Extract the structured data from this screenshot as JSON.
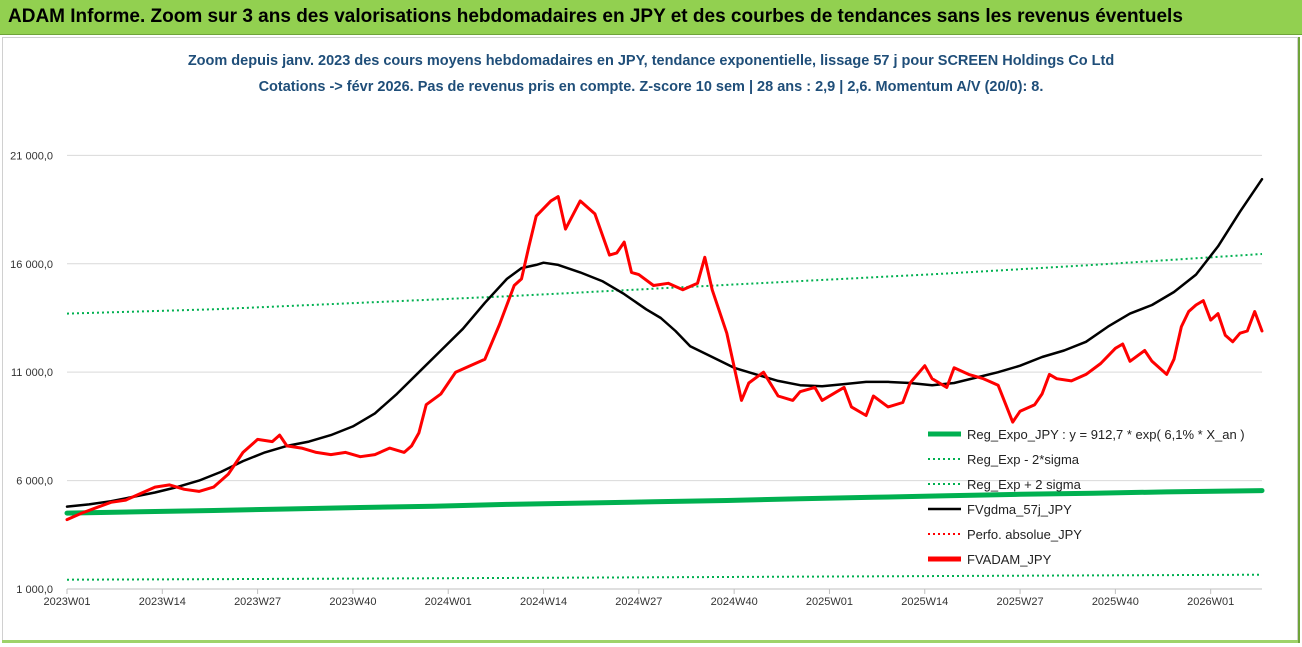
{
  "banner": {
    "title": "ADAM Informe. Zoom sur 3 ans des valorisations hebdomadaires en JPY et des courbes de tendances sans les revenus éventuels"
  },
  "chart_data": {
    "type": "line",
    "title_line1": "Zoom depuis janv. 2023 des cours moyens hebdomadaires en JPY, tendance exponentielle, lissage 57 j pour SCREEN Holdings Co Ltd",
    "title_line2": "Cotations -> févr 2026.  Pas de revenus pris en compte. Z-score 10 sem | 28 ans : 2,9 | 2,6. Momentum A/V (20/0): 8.",
    "ylim": [
      1000,
      23000
    ],
    "xlim": [
      0,
      163
    ],
    "y_ticks": [
      {
        "value": 1000,
        "label": "1 000,0"
      },
      {
        "value": 6000,
        "label": "6 000,0"
      },
      {
        "value": 11000,
        "label": "11 000,0"
      },
      {
        "value": 16000,
        "label": "16 000,0"
      },
      {
        "value": 21000,
        "label": "21 000,0"
      }
    ],
    "x_ticks": [
      {
        "index": 0,
        "label": "2023W01"
      },
      {
        "index": 13,
        "label": "2023W14"
      },
      {
        "index": 26,
        "label": "2023W27"
      },
      {
        "index": 39,
        "label": "2023W40"
      },
      {
        "index": 52,
        "label": "2024W01"
      },
      {
        "index": 65,
        "label": "2024W14"
      },
      {
        "index": 78,
        "label": "2024W27"
      },
      {
        "index": 91,
        "label": "2024W40"
      },
      {
        "index": 104,
        "label": "2025W01"
      },
      {
        "index": 117,
        "label": "2025W14"
      },
      {
        "index": 130,
        "label": "2025W27"
      },
      {
        "index": 143,
        "label": "2025W40"
      },
      {
        "index": 156,
        "label": "2026W01"
      }
    ],
    "series": [
      {
        "name": "Reg_Expo_JPY : y = 912,7 * exp( 6,1% *  X_an )",
        "color": "#00b050",
        "dash": "",
        "width": 5,
        "points": [
          [
            0,
            4500
          ],
          [
            10,
            4560
          ],
          [
            20,
            4620
          ],
          [
            30,
            4690
          ],
          [
            40,
            4760
          ],
          [
            50,
            4820
          ],
          [
            60,
            4900
          ],
          [
            70,
            4960
          ],
          [
            80,
            5020
          ],
          [
            90,
            5080
          ],
          [
            100,
            5160
          ],
          [
            110,
            5230
          ],
          [
            120,
            5300
          ],
          [
            130,
            5370
          ],
          [
            140,
            5420
          ],
          [
            150,
            5480
          ],
          [
            163,
            5540
          ]
        ]
      },
      {
        "name": "Reg_Exp - 2*sigma",
        "color": "#00b050",
        "dash": "2,3",
        "width": 2,
        "points": [
          [
            0,
            1430
          ],
          [
            40,
            1480
          ],
          [
            80,
            1540
          ],
          [
            120,
            1600
          ],
          [
            163,
            1660
          ]
        ]
      },
      {
        "name": "Reg_Exp + 2 sigma",
        "color": "#00b050",
        "dash": "2,3",
        "width": 2,
        "points": [
          [
            0,
            13700
          ],
          [
            20,
            13900
          ],
          [
            40,
            14200
          ],
          [
            60,
            14500
          ],
          [
            80,
            14850
          ],
          [
            100,
            15200
          ],
          [
            120,
            15550
          ],
          [
            140,
            15950
          ],
          [
            163,
            16450
          ]
        ]
      },
      {
        "name": "FVgdma_57j_JPY",
        "color": "#000000",
        "dash": "",
        "width": 2.5,
        "points": [
          [
            0,
            4800
          ],
          [
            3,
            4900
          ],
          [
            6,
            5050
          ],
          [
            9,
            5250
          ],
          [
            12,
            5450
          ],
          [
            15,
            5700
          ],
          [
            18,
            6000
          ],
          [
            21,
            6400
          ],
          [
            24,
            6900
          ],
          [
            27,
            7300
          ],
          [
            30,
            7600
          ],
          [
            33,
            7800
          ],
          [
            36,
            8100
          ],
          [
            39,
            8500
          ],
          [
            42,
            9100
          ],
          [
            45,
            10000
          ],
          [
            48,
            11000
          ],
          [
            51,
            12000
          ],
          [
            54,
            13000
          ],
          [
            57,
            14200
          ],
          [
            60,
            15300
          ],
          [
            62,
            15800
          ],
          [
            64,
            15950
          ],
          [
            65,
            16050
          ],
          [
            67,
            15950
          ],
          [
            70,
            15600
          ],
          [
            73,
            15200
          ],
          [
            76,
            14600
          ],
          [
            79,
            13900
          ],
          [
            81,
            13500
          ],
          [
            83,
            12900
          ],
          [
            85,
            12200
          ],
          [
            88,
            11700
          ],
          [
            91,
            11200
          ],
          [
            94,
            10900
          ],
          [
            97,
            10600
          ],
          [
            100,
            10400
          ],
          [
            103,
            10350
          ],
          [
            106,
            10450
          ],
          [
            109,
            10550
          ],
          [
            112,
            10550
          ],
          [
            115,
            10500
          ],
          [
            118,
            10400
          ],
          [
            121,
            10500
          ],
          [
            124,
            10750
          ],
          [
            127,
            11000
          ],
          [
            130,
            11300
          ],
          [
            133,
            11700
          ],
          [
            136,
            12000
          ],
          [
            139,
            12400
          ],
          [
            142,
            13100
          ],
          [
            145,
            13700
          ],
          [
            148,
            14100
          ],
          [
            151,
            14700
          ],
          [
            154,
            15500
          ],
          [
            157,
            16800
          ],
          [
            160,
            18400
          ],
          [
            163,
            19900
          ]
        ]
      },
      {
        "name": "Perfo. absolue_JPY",
        "color": "#ff0000",
        "dash": "2,3",
        "width": 1.5,
        "points": []
      },
      {
        "name": "FVADAM_JPY",
        "color": "#ff0000",
        "dash": "",
        "width": 3,
        "points": [
          [
            0,
            4200
          ],
          [
            2,
            4500
          ],
          [
            4,
            4750
          ],
          [
            6,
            5000
          ],
          [
            8,
            5100
          ],
          [
            10,
            5400
          ],
          [
            12,
            5700
          ],
          [
            14,
            5800
          ],
          [
            16,
            5600
          ],
          [
            18,
            5500
          ],
          [
            20,
            5700
          ],
          [
            22,
            6300
          ],
          [
            24,
            7300
          ],
          [
            26,
            7900
          ],
          [
            28,
            7800
          ],
          [
            29,
            8100
          ],
          [
            30,
            7600
          ],
          [
            32,
            7500
          ],
          [
            34,
            7300
          ],
          [
            36,
            7200
          ],
          [
            38,
            7300
          ],
          [
            40,
            7100
          ],
          [
            42,
            7200
          ],
          [
            44,
            7500
          ],
          [
            46,
            7300
          ],
          [
            47,
            7600
          ],
          [
            48,
            8200
          ],
          [
            49,
            9500
          ],
          [
            51,
            10000
          ],
          [
            53,
            11000
          ],
          [
            55,
            11300
          ],
          [
            57,
            11600
          ],
          [
            59,
            13200
          ],
          [
            61,
            15000
          ],
          [
            62,
            15300
          ],
          [
            63,
            16800
          ],
          [
            64,
            18200
          ],
          [
            66,
            18900
          ],
          [
            67,
            19100
          ],
          [
            68,
            17600
          ],
          [
            70,
            18900
          ],
          [
            72,
            18300
          ],
          [
            74,
            16400
          ],
          [
            75,
            16500
          ],
          [
            76,
            17000
          ],
          [
            77,
            15600
          ],
          [
            78,
            15500
          ],
          [
            80,
            15000
          ],
          [
            82,
            15100
          ],
          [
            84,
            14800
          ],
          [
            86,
            15100
          ],
          [
            87,
            16300
          ],
          [
            88,
            14800
          ],
          [
            90,
            12800
          ],
          [
            92,
            9700
          ],
          [
            93,
            10500
          ],
          [
            95,
            11000
          ],
          [
            97,
            9900
          ],
          [
            99,
            9700
          ],
          [
            100,
            10100
          ],
          [
            102,
            10300
          ],
          [
            103,
            9700
          ],
          [
            105,
            10100
          ],
          [
            106,
            10300
          ],
          [
            107,
            9400
          ],
          [
            109,
            9000
          ],
          [
            110,
            9900
          ],
          [
            112,
            9400
          ],
          [
            114,
            9600
          ],
          [
            115,
            10500
          ],
          [
            117,
            11300
          ],
          [
            118,
            10700
          ],
          [
            120,
            10300
          ],
          [
            121,
            11200
          ],
          [
            123,
            10900
          ],
          [
            125,
            10700
          ],
          [
            127,
            10400
          ],
          [
            129,
            8700
          ],
          [
            130,
            9200
          ],
          [
            132,
            9500
          ],
          [
            133,
            10000
          ],
          [
            134,
            10900
          ],
          [
            135,
            10700
          ],
          [
            137,
            10600
          ],
          [
            139,
            10900
          ],
          [
            141,
            11400
          ],
          [
            143,
            12100
          ],
          [
            144,
            12300
          ],
          [
            145,
            11500
          ],
          [
            147,
            12000
          ],
          [
            148,
            11500
          ],
          [
            150,
            10900
          ],
          [
            151,
            11600
          ],
          [
            152,
            13100
          ],
          [
            153,
            13800
          ],
          [
            154,
            14100
          ],
          [
            155,
            14300
          ],
          [
            156,
            13400
          ],
          [
            157,
            13700
          ],
          [
            158,
            12700
          ],
          [
            159,
            12400
          ],
          [
            160,
            12800
          ],
          [
            161,
            12900
          ],
          [
            162,
            13800
          ],
          [
            163,
            12900
          ]
        ]
      }
    ],
    "legend": [
      {
        "label": "Reg_Expo_JPY : y = 912,7 * exp( 6,1% *  X_an )",
        "color": "#00b050",
        "style": "solid-thick"
      },
      {
        "label": "Reg_Exp - 2*sigma",
        "color": "#00b050",
        "style": "dotted"
      },
      {
        "label": "Reg_Exp + 2 sigma",
        "color": "#00b050",
        "style": "dotted"
      },
      {
        "label": "FVgdma_57j_JPY",
        "color": "#000000",
        "style": "solid"
      },
      {
        "label": "Perfo. absolue_JPY",
        "color": "#ff0000",
        "style": "dotted"
      },
      {
        "label": "FVADAM_JPY",
        "color": "#ff0000",
        "style": "solid-thick"
      }
    ],
    "legend_position": "bottom-right",
    "grid": "horizontal"
  }
}
